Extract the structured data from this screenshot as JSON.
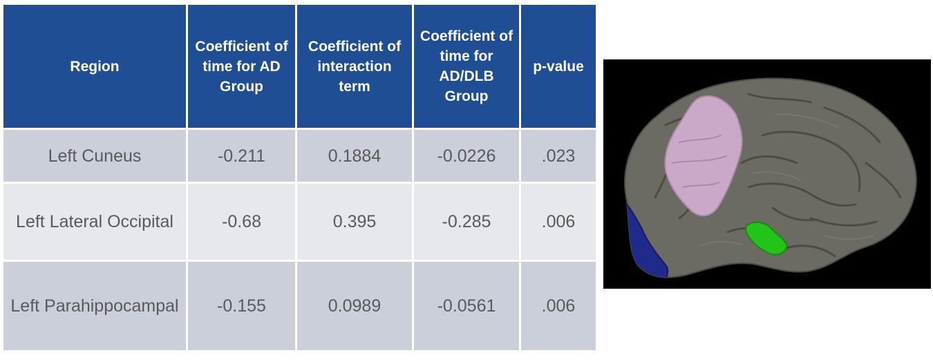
{
  "table": {
    "headers": [
      "Region",
      "Coefficient of time for AD Group",
      "Coefficient of interaction term",
      "Coefficient of time for AD/DLB Group",
      "p-value"
    ],
    "rows": [
      {
        "region": "Left Cuneus",
        "coef_ad": "-0.211",
        "coef_interaction": "0.1884",
        "coef_ad_dlb": "-0.0226",
        "p_value": ".023"
      },
      {
        "region": "Left Lateral Occipital",
        "coef_ad": "-0.68",
        "coef_interaction": "0.395",
        "coef_ad_dlb": "-0.285",
        "p_value": ".006"
      },
      {
        "region": "Left Parahippocampal",
        "coef_ad": "-0.155",
        "coef_interaction": "0.0989",
        "coef_ad_dlb": "-0.0561",
        "p_value": ".006"
      }
    ]
  },
  "brain_image": {
    "highlighted_regions": [
      {
        "color": "#c9a8c8"
      },
      {
        "color": "#1f2a8a"
      },
      {
        "color": "#22c41a"
      }
    ],
    "surface_color": "#6b6a63",
    "background_color": "#000000"
  }
}
